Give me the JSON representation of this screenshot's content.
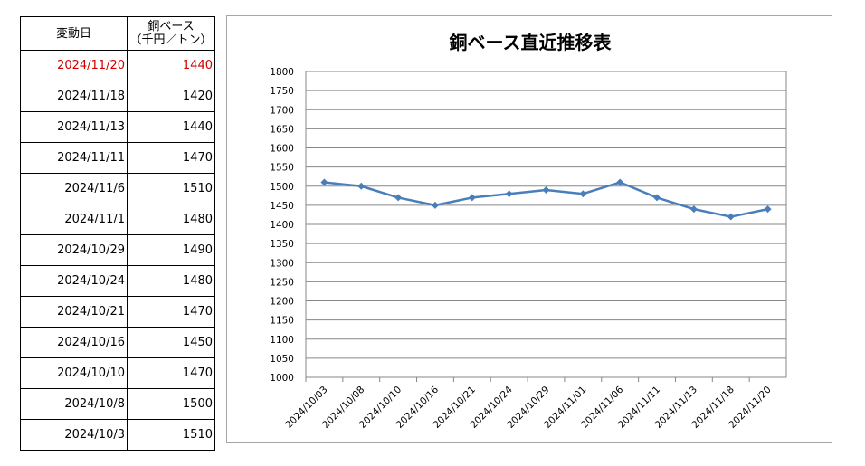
{
  "table": {
    "header_date": "変動日",
    "header_price_line1": "銅ベース",
    "header_price_line2": "（千円／トン）",
    "rows": [
      {
        "date": "2024/11/20",
        "price": "1440"
      },
      {
        "date": "2024/11/18",
        "price": "1420"
      },
      {
        "date": "2024/11/13",
        "price": "1440"
      },
      {
        "date": "2024/11/11",
        "price": "1470"
      },
      {
        "date": "2024/11/6",
        "price": "1510"
      },
      {
        "date": "2024/11/1",
        "price": "1480"
      },
      {
        "date": "2024/10/29",
        "price": "1490"
      },
      {
        "date": "2024/10/24",
        "price": "1480"
      },
      {
        "date": "2024/10/21",
        "price": "1470"
      },
      {
        "date": "2024/10/16",
        "price": "1450"
      },
      {
        "date": "2024/10/10",
        "price": "1470"
      },
      {
        "date": "2024/10/8",
        "price": "1500"
      },
      {
        "date": "2024/10/3",
        "price": "1510"
      }
    ],
    "highlight_color": "#d00000"
  },
  "chart_data": {
    "type": "line",
    "title": "銅ベース直近推移表",
    "categories": [
      "2024/10/03",
      "2024/10/08",
      "2024/10/10",
      "2024/10/16",
      "2024/10/21",
      "2024/10/24",
      "2024/10/29",
      "2024/11/01",
      "2024/11/06",
      "2024/11/11",
      "2024/11/13",
      "2024/11/18",
      "2024/11/20"
    ],
    "series": [
      {
        "values": [
          1510,
          1500,
          1470,
          1450,
          1470,
          1480,
          1490,
          1480,
          1510,
          1470,
          1440,
          1420,
          1440
        ],
        "color": "#4a7ebb",
        "marker": "diamond"
      }
    ],
    "ylim": [
      1000,
      1800
    ],
    "yticks": [
      1000,
      1050,
      1100,
      1150,
      1200,
      1250,
      1300,
      1350,
      1400,
      1450,
      1500,
      1550,
      1600,
      1650,
      1700,
      1750,
      1800
    ],
    "grid": true,
    "legend": "none"
  }
}
